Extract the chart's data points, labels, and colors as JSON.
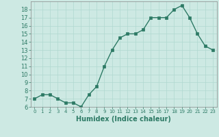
{
  "x": [
    0,
    1,
    2,
    3,
    4,
    5,
    6,
    7,
    8,
    9,
    10,
    11,
    12,
    13,
    14,
    15,
    16,
    17,
    18,
    19,
    20,
    21,
    22,
    23
  ],
  "y": [
    7.0,
    7.5,
    7.5,
    7.0,
    6.5,
    6.5,
    6.0,
    7.5,
    8.5,
    11.0,
    13.0,
    14.5,
    15.0,
    15.0,
    15.5,
    17.0,
    17.0,
    17.0,
    18.0,
    18.5,
    17.0,
    15.0,
    13.5,
    13.0
  ],
  "line_color": "#2d7a65",
  "marker_color": "#2d7a65",
  "bg_color": "#cde9e3",
  "grid_color": "#b0d8d0",
  "xlabel": "Humidex (Indice chaleur)",
  "ylim": [
    6,
    19
  ],
  "xlim": [
    -0.5,
    23.5
  ],
  "yticks": [
    6,
    7,
    8,
    9,
    10,
    11,
    12,
    13,
    14,
    15,
    16,
    17,
    18
  ],
  "xticks": [
    0,
    1,
    2,
    3,
    4,
    5,
    6,
    7,
    8,
    9,
    10,
    11,
    12,
    13,
    14,
    15,
    16,
    17,
    18,
    19,
    20,
    21,
    22,
    23
  ],
  "fontsize_label": 7,
  "fontsize_tick": 6,
  "line_width": 1.0,
  "marker_size": 2.5
}
